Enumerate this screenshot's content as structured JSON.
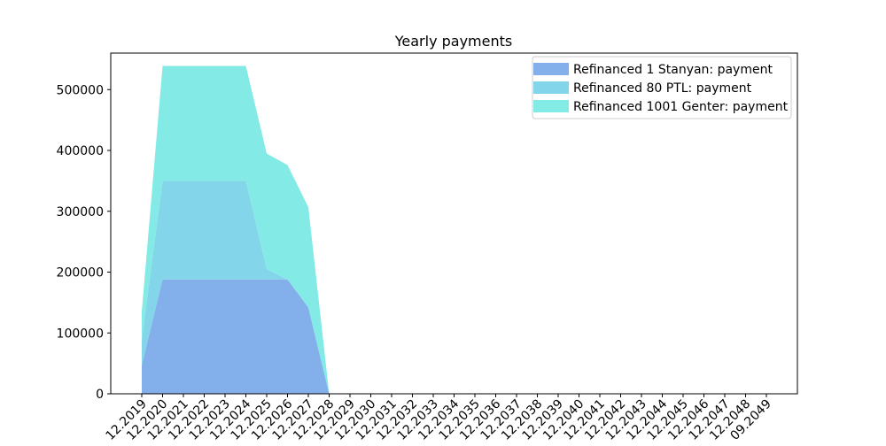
{
  "chart_data": {
    "type": "area",
    "stacked": true,
    "title": "Yearly payments",
    "xlabel": "",
    "ylabel": "",
    "ylim": [
      0,
      560000
    ],
    "ytick_labels": [
      "0",
      "100000",
      "200000",
      "300000",
      "400000",
      "500000"
    ],
    "grid": false,
    "legend_placement": "top-right",
    "categories": [
      "12.2019",
      "12.2020",
      "12.2021",
      "12.2022",
      "12.2023",
      "12.2024",
      "12.2025",
      "12.2026",
      "12.2027",
      "12.2028",
      "12.2029",
      "12.2030",
      "12.2031",
      "12.2032",
      "12.2033",
      "12.2034",
      "12.2035",
      "12.2036",
      "12.2037",
      "12.2038",
      "12.2039",
      "12.2040",
      "12.2041",
      "12.2042",
      "12.2043",
      "12.2044",
      "12.2045",
      "12.2046",
      "12.2047",
      "12.2048",
      "09.2049"
    ],
    "series": [
      {
        "name": "Refinanced 1 Stanyan: payment",
        "color": "#83b0ea",
        "values": [
          47000,
          188000,
          188000,
          188000,
          188000,
          188000,
          188000,
          188000,
          142000,
          0,
          0,
          0,
          0,
          0,
          0,
          0,
          0,
          0,
          0,
          0,
          0,
          0,
          0,
          0,
          0,
          0,
          0,
          0,
          0,
          0,
          0
        ]
      },
      {
        "name": "Refinanced 80 PTL: payment",
        "color": "#83d5ea",
        "values": [
          41000,
          162000,
          162000,
          162000,
          162000,
          162000,
          17000,
          0,
          0,
          0,
          0,
          0,
          0,
          0,
          0,
          0,
          0,
          0,
          0,
          0,
          0,
          0,
          0,
          0,
          0,
          0,
          0,
          0,
          0,
          0,
          0
        ]
      },
      {
        "name": "Refinanced 1001 Genter: payment",
        "color": "#83eae5",
        "values": [
          47000,
          189000,
          189000,
          189000,
          189000,
          189000,
          190000,
          188000,
          165000,
          0,
          0,
          0,
          0,
          0,
          0,
          0,
          0,
          0,
          0,
          0,
          0,
          0,
          0,
          0,
          0,
          0,
          0,
          0,
          0,
          0,
          0
        ]
      }
    ]
  }
}
